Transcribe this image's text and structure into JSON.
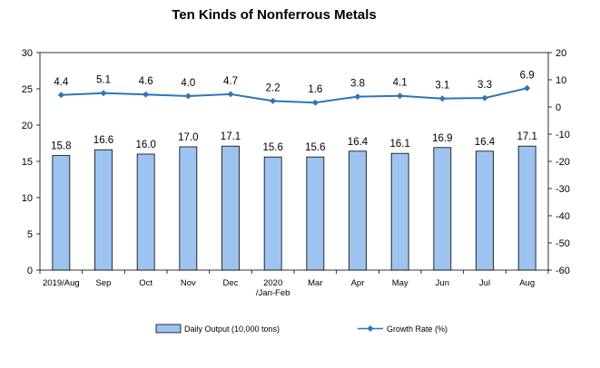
{
  "chart_data": {
    "type": "bar+line",
    "title": "Ten Kinds of Nonferrous Metals",
    "categories": [
      [
        "2019/Aug"
      ],
      [
        "Sep"
      ],
      [
        "Oct"
      ],
      [
        "Nov"
      ],
      [
        "Dec"
      ],
      [
        "2020",
        "/Jan-Feb"
      ],
      [
        "Mar"
      ],
      [
        "Apr"
      ],
      [
        "May"
      ],
      [
        "Jun"
      ],
      [
        "Jul"
      ],
      [
        "Aug"
      ]
    ],
    "series": [
      {
        "name": "Daily Output (10,000 tons)",
        "type": "bar",
        "axis": "left",
        "color": "#9DC3F0",
        "values": [
          15.8,
          16.6,
          16.0,
          17.0,
          17.1,
          15.6,
          15.6,
          16.4,
          16.1,
          16.9,
          16.4,
          17.1
        ],
        "labels": [
          "15.8",
          "16.6",
          "16.0",
          "17.0",
          "17.1",
          "15.6",
          "15.6",
          "16.4",
          "16.1",
          "16.9",
          "16.4",
          "17.1"
        ]
      },
      {
        "name": "Growth Rate (%)",
        "type": "line",
        "axis": "right",
        "color": "#2E75B6",
        "values": [
          4.4,
          5.1,
          4.6,
          4.0,
          4.7,
          2.2,
          1.6,
          3.8,
          4.1,
          3.1,
          3.3,
          6.9
        ],
        "labels": [
          "4.4",
          "5.1",
          "4.6",
          "4.0",
          "4.7",
          "2.2",
          "1.6",
          "3.8",
          "4.1",
          "3.1",
          "3.3",
          "6.9"
        ]
      }
    ],
    "y_left": {
      "min": 0,
      "max": 30,
      "step": 5,
      "ticks": [
        "0",
        "5",
        "10",
        "15",
        "20",
        "25",
        "30"
      ]
    },
    "y_right": {
      "min": -60,
      "max": 20,
      "step": 10,
      "ticks": [
        "-60",
        "-50",
        "-40",
        "-30",
        "-20",
        "-10",
        "0",
        "10",
        "20"
      ]
    },
    "grid": false,
    "legend_position": "bottom"
  }
}
